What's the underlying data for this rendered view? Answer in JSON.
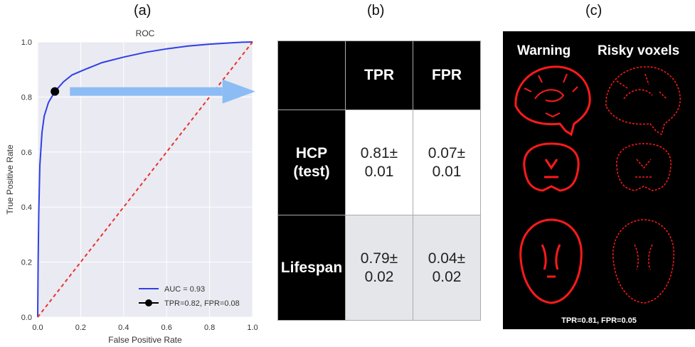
{
  "panels": {
    "a": "(a)",
    "b": "(b)",
    "c": "(c)"
  },
  "chart_data": {
    "type": "line",
    "title": "ROC",
    "xlabel": "False Positive Rate",
    "ylabel": "True Positive Rate",
    "xlim": [
      0.0,
      1.0
    ],
    "ylim": [
      0.0,
      1.0
    ],
    "xticks": [
      "0.0",
      "0.2",
      "0.4",
      "0.6",
      "0.8",
      "1.0"
    ],
    "yticks": [
      "0.0",
      "0.2",
      "0.4",
      "0.6",
      "0.8",
      "1.0"
    ],
    "grid": true,
    "legend_position": "bottom-right",
    "series": [
      {
        "name": "AUC = 0.93",
        "color": "#2f3fe8",
        "x": [
          0.0,
          0.002,
          0.005,
          0.01,
          0.02,
          0.03,
          0.05,
          0.08,
          0.12,
          0.16,
          0.22,
          0.3,
          0.4,
          0.5,
          0.6,
          0.7,
          0.8,
          0.9,
          0.95,
          1.0
        ],
        "y": [
          0.0,
          0.2,
          0.38,
          0.55,
          0.67,
          0.73,
          0.78,
          0.82,
          0.855,
          0.88,
          0.9,
          0.925,
          0.945,
          0.962,
          0.975,
          0.985,
          0.992,
          0.997,
          0.999,
          1.0
        ]
      },
      {
        "name": "",
        "style": "dashed",
        "color": "#e8332e",
        "x": [
          0.0,
          1.0
        ],
        "y": [
          0.0,
          1.0
        ]
      }
    ],
    "points": [
      {
        "name": "TPR=0.82, FPR=0.08",
        "x": 0.08,
        "y": 0.82,
        "color": "#000000"
      }
    ]
  },
  "arrow_color": "#8bbcf4",
  "table": {
    "headers": [
      "",
      "TPR",
      "FPR"
    ],
    "rows": [
      {
        "label_line1": "HCP",
        "label_line2": "(test)",
        "tpr_1": "0.81±",
        "tpr_2": "0.01",
        "fpr_1": "0.07±",
        "fpr_2": "0.01"
      },
      {
        "label_line1": "Lifespan",
        "label_line2": "",
        "tpr_1": "0.79±",
        "tpr_2": "0.02",
        "fpr_1": "0.04±",
        "fpr_2": "0.02"
      }
    ]
  },
  "brains": {
    "col_warning": "Warning",
    "col_risky": "Risky voxels",
    "caption": "TPR=0.81, FPR=0.05",
    "highlight_color": "#ff1a1a"
  }
}
